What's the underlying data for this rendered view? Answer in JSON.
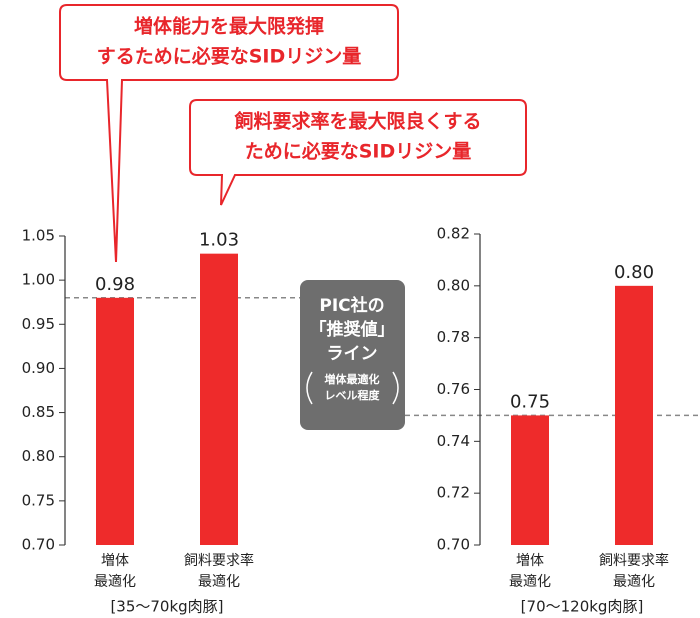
{
  "chart_data": [
    {
      "type": "bar",
      "color": "#ee2b2b",
      "categories": [
        [
          "増体",
          "最適化"
        ],
        [
          "飼料要求率",
          "最適化"
        ]
      ],
      "values": [
        0.98,
        1.03
      ],
      "xlabel": "[35～70kg肉豚]",
      "ylim": [
        0.7,
        1.05
      ],
      "yticks": [
        {
          "value": 0.7,
          "label": "0.70"
        },
        {
          "value": 0.75,
          "label": "0.75"
        },
        {
          "value": 0.8,
          "label": "0.80"
        },
        {
          "value": 0.85,
          "label": "0.85"
        },
        {
          "value": 0.9,
          "label": "0.90"
        },
        {
          "value": 0.95,
          "label": "0.95"
        },
        {
          "value": 1.0,
          "label": "1.00"
        },
        {
          "value": 1.05,
          "label": "1.05"
        }
      ],
      "grid": false,
      "reference_line": 0.98,
      "callouts": [
        {
          "lines": [
            "増体能力を最大限発揮",
            "するために必要なSIDリジン量"
          ]
        },
        {
          "lines": [
            "飼料要求率を最大限良くする",
            "ために必要なSIDリジン量"
          ]
        }
      ]
    },
    {
      "type": "bar",
      "color": "#ee2b2b",
      "categories": [
        [
          "増体",
          "最適化"
        ],
        [
          "飼料要求率",
          "最適化"
        ]
      ],
      "values": [
        0.75,
        0.8
      ],
      "value_labels": [
        "0.75",
        "0.80"
      ],
      "xlabel": "[70～120kg肉豚]",
      "ylim": [
        0.7,
        0.82
      ],
      "yticks": [
        {
          "value": 0.7,
          "label": "0.70"
        },
        {
          "value": 0.72,
          "label": "0.72"
        },
        {
          "value": 0.74,
          "label": "0.74"
        },
        {
          "value": 0.76,
          "label": "0.76"
        },
        {
          "value": 0.78,
          "label": "0.78"
        },
        {
          "value": 0.8,
          "label": "0.80"
        },
        {
          "value": 0.82,
          "label": "0.82"
        }
      ],
      "grid": false,
      "reference_line": 0.75
    }
  ],
  "recommended_label": {
    "lines": [
      "PIC社の",
      "「推奨値」",
      "ライン"
    ],
    "note": [
      "増体最適化",
      "レベル程度"
    ]
  }
}
